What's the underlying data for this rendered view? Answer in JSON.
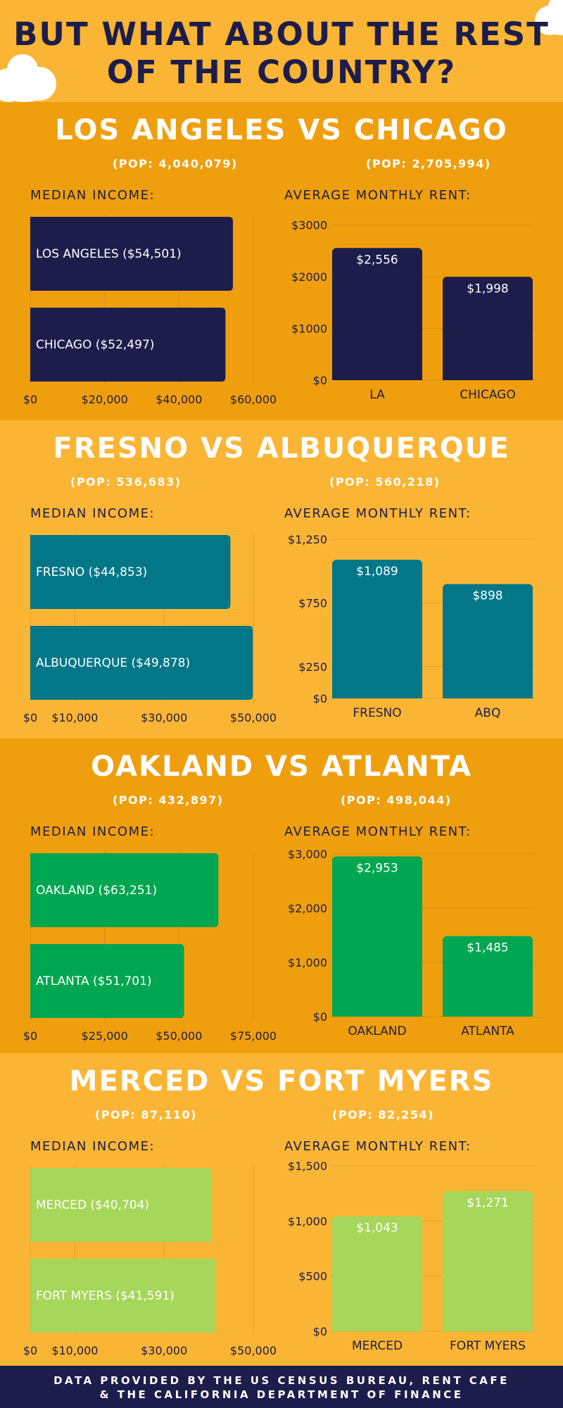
{
  "header": {
    "title": "BUT WHAT ABOUT THE REST OF THE COUNTRY?"
  },
  "colors": {
    "dark_band": "#ef9f0e",
    "light_band": "#fbb534",
    "navy": "#1d1d4b",
    "teal": "#017788",
    "green": "#00a651",
    "lime": "#a6d65a"
  },
  "footer": {
    "line1": "DATA PROVIDED BY THE US CENSUS BUREAU, RENT CAFE",
    "line2": "& THE CALIFORNIA DEPARTMENT OF FINANCE"
  },
  "sections": [
    {
      "title": "LOS ANGELES VS CHICAGO",
      "pop1": "(POP: 4,040,079)",
      "pop2": "(POP: 2,705,994)",
      "income_label": "MEDIAN INCOME:",
      "rent_label": "AVERAGE MONTHLY RENT:",
      "color": "#1d1d4b"
    },
    {
      "title": "FRESNO VS ALBUQUERQUE",
      "pop1": "(POP: 536,683)",
      "pop2": "(POP: 560,218)",
      "income_label": "MEDIAN INCOME:",
      "rent_label": "AVERAGE MONTHLY RENT:",
      "color": "#017788"
    },
    {
      "title": "OAKLAND VS ATLANTA",
      "pop1": "(POP: 432,897)",
      "pop2": "(POP: 498,044)",
      "income_label": "MEDIAN INCOME:",
      "rent_label": "AVERAGE MONTHLY RENT:",
      "color": "#00a651"
    },
    {
      "title": "MERCED VS FORT MYERS",
      "pop1": "(POP: 87,110)",
      "pop2": "(POP: 82,254)",
      "income_label": "MEDIAN INCOME:",
      "rent_label": "AVERAGE MONTHLY RENT:",
      "color": "#a6d65a"
    }
  ],
  "chart_data": [
    {
      "type": "bar",
      "orientation": "horizontal",
      "title": "MEDIAN INCOME:",
      "categories": [
        "LOS ANGELES ($54,501)",
        "CHICAGO ($52,497)"
      ],
      "values": [
        54501,
        52497
      ],
      "xlim": [
        0,
        60000
      ],
      "ticks": [
        0,
        20000,
        40000,
        60000
      ],
      "tick_labels": [
        "$0",
        "$20,000",
        "$40,000",
        "$60,000"
      ]
    },
    {
      "type": "bar",
      "title": "AVERAGE MONTHLY RENT:",
      "categories": [
        "LA",
        "CHICAGO"
      ],
      "values": [
        2556,
        1998
      ],
      "value_labels": [
        "$2,556",
        "$1,998"
      ],
      "ylim": [
        0,
        3200
      ],
      "ticks": [
        0,
        1000,
        2000,
        3000
      ],
      "tick_labels": [
        "$0",
        "$1000",
        "$2000",
        "$3000"
      ]
    },
    {
      "type": "bar",
      "orientation": "horizontal",
      "title": "MEDIAN INCOME:",
      "categories": [
        "FRESNO ($44,853)",
        "ALBUQUERQUE ($49,878)"
      ],
      "values": [
        44853,
        49878
      ],
      "xlim": [
        0,
        50000
      ],
      "ticks": [
        0,
        10000,
        30000,
        50000
      ],
      "tick_labels": [
        "$0",
        "$10,000",
        "$30,000",
        "$50,000"
      ]
    },
    {
      "type": "bar",
      "title": "AVERAGE MONTHLY RENT:",
      "categories": [
        "FRESNO",
        "ABQ"
      ],
      "values": [
        1089,
        898
      ],
      "value_labels": [
        "$1,089",
        "$898"
      ],
      "ylim": [
        0,
        1300
      ],
      "ticks": [
        0,
        250,
        750,
        1250
      ],
      "tick_labels": [
        "$0",
        "$250",
        "$750",
        "$1,250"
      ]
    },
    {
      "type": "bar",
      "orientation": "horizontal",
      "title": "MEDIAN INCOME:",
      "categories": [
        "OAKLAND ($63,251)",
        "ATLANTA ($51,701)"
      ],
      "values": [
        63251,
        51701
      ],
      "xlim": [
        0,
        75000
      ],
      "ticks": [
        0,
        25000,
        50000,
        75000
      ],
      "tick_labels": [
        "$0",
        "$25,000",
        "$50,000",
        "$75,000"
      ]
    },
    {
      "type": "bar",
      "title": "AVERAGE MONTHLY RENT:",
      "categories": [
        "OAKLAND",
        "ATLANTA"
      ],
      "values": [
        2953,
        1485
      ],
      "value_labels": [
        "$2,953",
        "$1,485"
      ],
      "ylim": [
        0,
        3050
      ],
      "ticks": [
        0,
        1000,
        2000,
        3000
      ],
      "tick_labels": [
        "$0",
        "$1,000",
        "$2,000",
        "$3,000"
      ]
    },
    {
      "type": "bar",
      "orientation": "horizontal",
      "title": "MEDIAN INCOME:",
      "categories": [
        "MERCED ($40,704)",
        "FORT MYERS ($41,591)"
      ],
      "values": [
        40704,
        41591
      ],
      "xlim": [
        0,
        50000
      ],
      "ticks": [
        0,
        10000,
        30000,
        50000
      ],
      "tick_labels": [
        "$0",
        "$10,000",
        "$30,000",
        "$50,000"
      ]
    },
    {
      "type": "bar",
      "title": "AVERAGE MONTHLY RENT:",
      "categories": [
        "MERCED",
        "FORT MYERS"
      ],
      "values": [
        1043,
        1271
      ],
      "value_labels": [
        "$1,043",
        "$1,271"
      ],
      "ylim": [
        0,
        1500
      ],
      "ticks": [
        0,
        500,
        1000,
        1500
      ],
      "tick_labels": [
        "$0",
        "$500",
        "$1,000",
        "$1,500"
      ]
    }
  ]
}
